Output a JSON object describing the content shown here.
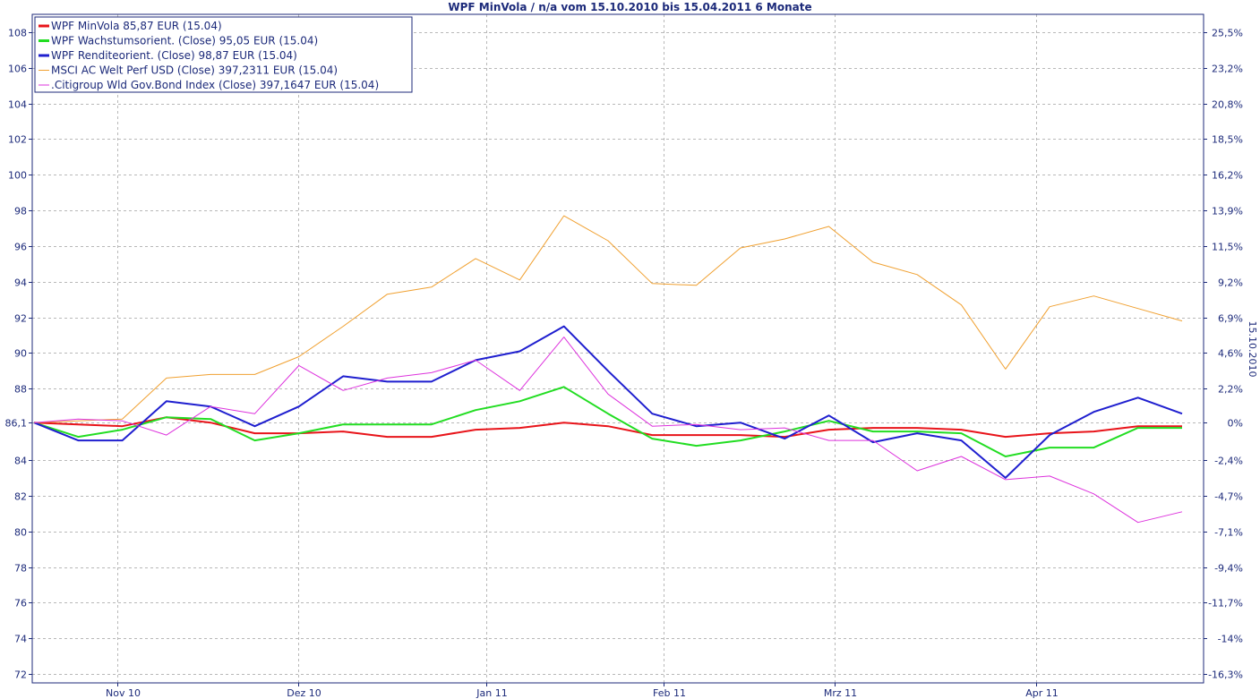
{
  "chart_data": {
    "type": "line",
    "title": "WPF MinVola / n/a vom 15.10.2010 bis 15.04.2011 6 Monate",
    "right_axis_label": "15.10.2010",
    "x_tick_labels": [
      "Nov 10",
      "Dez 10",
      "Jan 11",
      "Feb 11",
      "Mrz 11",
      "Apr 11"
    ],
    "x_tick_weeks": [
      2.4,
      7.6,
      13.0,
      18.1,
      23.0,
      28.8
    ],
    "weeks": 33,
    "y_left": {
      "range": [
        71.5,
        109
      ],
      "ticks": [
        {
          "v": 108,
          "label": "108"
        },
        {
          "v": 106,
          "label": "106"
        },
        {
          "v": 104,
          "label": "104"
        },
        {
          "v": 102,
          "label": "102"
        },
        {
          "v": 100,
          "label": "100"
        },
        {
          "v": 98,
          "label": "98"
        },
        {
          "v": 96,
          "label": "96"
        },
        {
          "v": 94,
          "label": "94"
        },
        {
          "v": 92,
          "label": "92"
        },
        {
          "v": 90,
          "label": "90"
        },
        {
          "v": 88,
          "label": "88"
        },
        {
          "v": 86.1,
          "label": "86,1"
        },
        {
          "v": 84,
          "label": "84"
        },
        {
          "v": 82,
          "label": "82"
        },
        {
          "v": 80,
          "label": "80"
        },
        {
          "v": 78,
          "label": "78"
        },
        {
          "v": 76,
          "label": "76"
        },
        {
          "v": 74,
          "label": "74"
        },
        {
          "v": 72,
          "label": "72"
        }
      ]
    },
    "y_right": {
      "ticks": [
        {
          "v": 108,
          "label": "25,5%"
        },
        {
          "v": 106,
          "label": "23,2%"
        },
        {
          "v": 104,
          "label": "20,8%"
        },
        {
          "v": 102,
          "label": "18,5%"
        },
        {
          "v": 100,
          "label": "16,2%"
        },
        {
          "v": 98,
          "label": "13,9%"
        },
        {
          "v": 96,
          "label": "11,5%"
        },
        {
          "v": 94,
          "label": "9,2%"
        },
        {
          "v": 92,
          "label": "6,9%"
        },
        {
          "v": 90,
          "label": "4,6%"
        },
        {
          "v": 88,
          "label": "2,2%"
        },
        {
          "v": 86.1,
          "label": "0%"
        },
        {
          "v": 84,
          "label": "-2,4%"
        },
        {
          "v": 82,
          "label": "-4,7%"
        },
        {
          "v": 80,
          "label": "-7,1%"
        },
        {
          "v": 78,
          "label": "-9,4%"
        },
        {
          "v": 76,
          "label": "-11,7%"
        },
        {
          "v": 74,
          "label": "-14%"
        },
        {
          "v": 72,
          "label": "-16,3%"
        }
      ]
    },
    "grid": true,
    "legend_position": "top-left",
    "series": [
      {
        "name": "WPF MinVola 85,87 EUR (15.04)",
        "color": "#e8141a",
        "width": 2,
        "values": [
          86.1,
          86.0,
          85.9,
          86.4,
          86.1,
          85.5,
          85.5,
          85.6,
          85.3,
          85.3,
          85.7,
          85.8,
          86.1,
          85.9,
          85.4,
          85.4,
          85.4,
          85.3,
          85.7,
          85.8,
          85.8,
          85.7,
          85.3,
          85.5,
          85.6,
          85.9,
          85.9
        ]
      },
      {
        "name": "WPF Wachstumsorient. (Close) 95,05 EUR (15.04)",
        "color": "#22dd22",
        "width": 2,
        "values": [
          86.1,
          85.3,
          85.7,
          86.4,
          86.3,
          85.1,
          85.5,
          86.0,
          86.0,
          86.0,
          86.8,
          87.3,
          88.1,
          86.6,
          85.2,
          84.8,
          85.1,
          85.6,
          86.2,
          85.6,
          85.6,
          85.5,
          84.2,
          84.7,
          84.7,
          85.8,
          85.8
        ]
      },
      {
        "name": "WPF Renditeorient. (Close) 98,87 EUR (15.04)",
        "color": "#1f1fcf",
        "width": 2,
        "values": [
          86.1,
          85.1,
          85.1,
          87.3,
          87.0,
          85.9,
          87.0,
          88.7,
          88.4,
          88.4,
          89.6,
          90.1,
          91.5,
          89.0,
          86.6,
          85.9,
          86.1,
          85.2,
          86.5,
          85.0,
          85.5,
          85.1,
          83.0,
          85.4,
          86.7,
          87.5,
          86.6
        ]
      },
      {
        "name": "MSCI AC Welt Perf USD (Close) 397,2311 EUR (15.04)",
        "color": "#f0a030",
        "width": 1,
        "values": [
          86.1,
          86.2,
          86.3,
          88.6,
          88.8,
          88.8,
          89.8,
          91.5,
          93.3,
          93.7,
          95.3,
          94.1,
          97.7,
          96.3,
          93.9,
          93.8,
          95.9,
          96.4,
          97.1,
          95.1,
          94.4,
          92.7,
          89.1,
          92.6,
          93.2,
          92.5,
          91.8
        ]
      },
      {
        "name": ".Citigroup Wld Gov.Bond Index (Close) 397,1647 EUR (15.04)",
        "color": "#dd33dd",
        "width": 1,
        "values": [
          86.1,
          86.3,
          86.2,
          85.4,
          87.0,
          86.6,
          89.3,
          87.9,
          88.6,
          88.9,
          89.6,
          87.9,
          90.9,
          87.7,
          85.9,
          86.0,
          85.7,
          85.8,
          85.1,
          85.1,
          83.4,
          84.2,
          82.9,
          83.1,
          82.1,
          80.5,
          81.1
        ]
      }
    ]
  }
}
